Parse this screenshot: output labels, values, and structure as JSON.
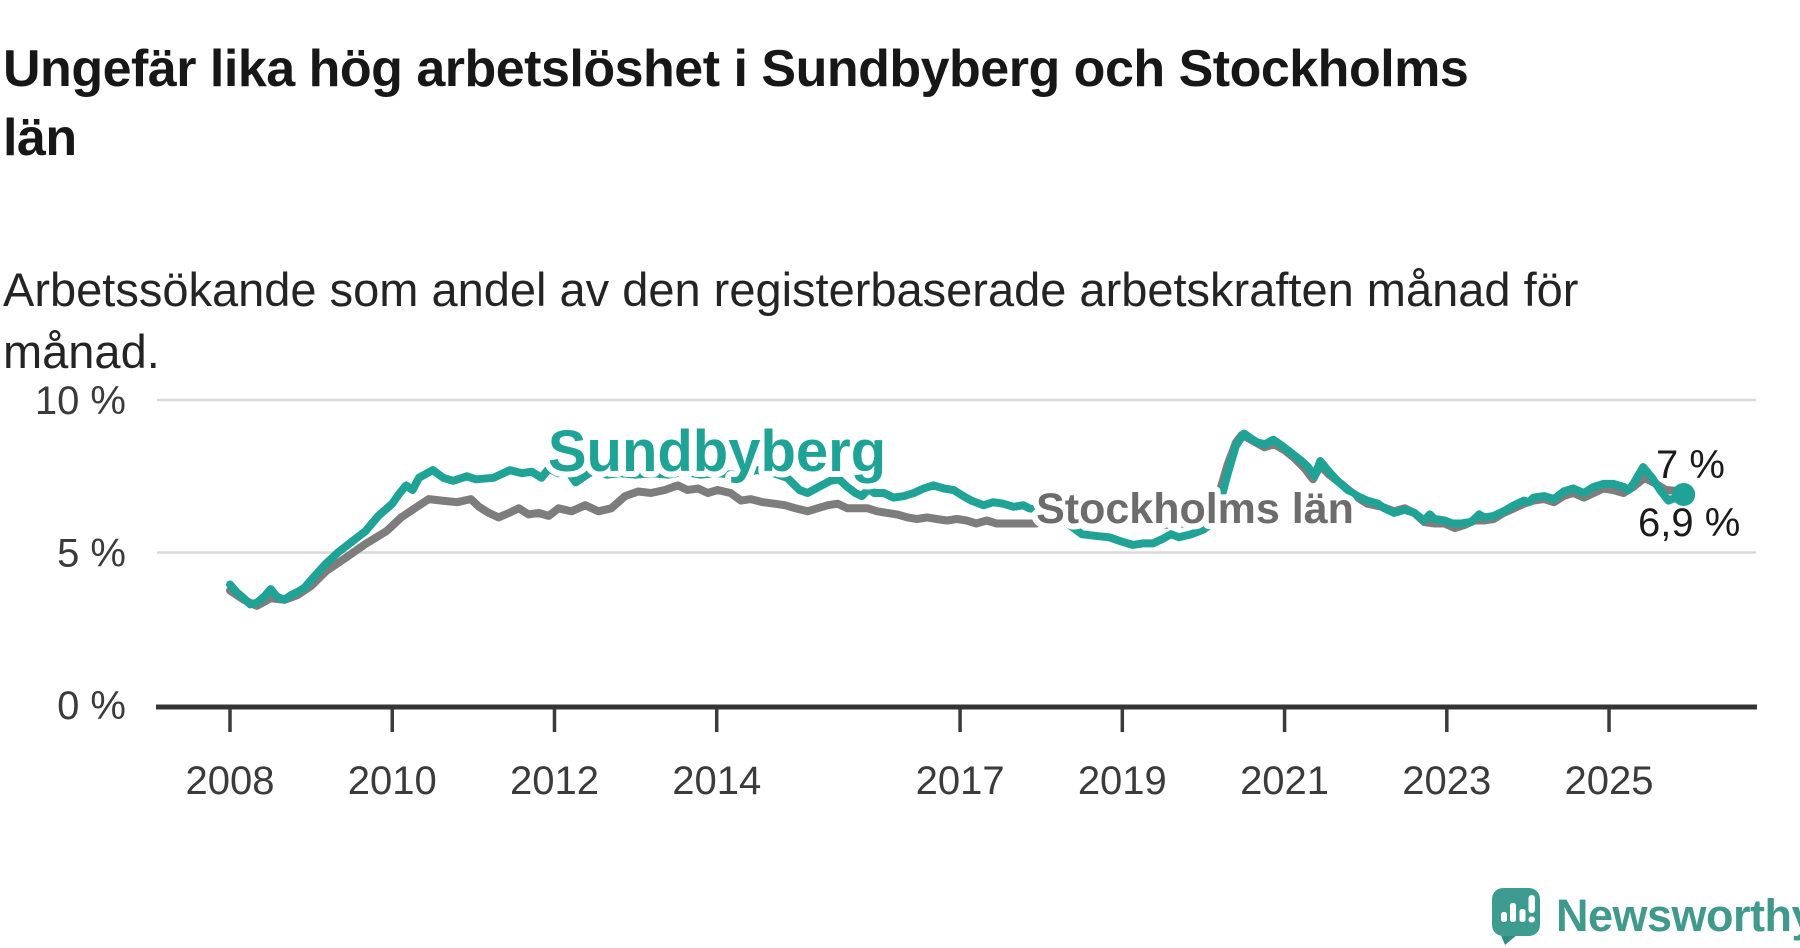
{
  "chart_data": {
    "type": "line",
    "title": "Ungefär lika hög arbetslöshet i Sundbyberg och Stockholms\nlän",
    "subtitle": "Arbetssökande som andel av den registerbaserade arbetskraften månad för\nmånad.",
    "unit": "%",
    "grid": true,
    "x_range": [
      2008.0,
      2025.92
    ],
    "y_axis": {
      "range": [
        0,
        10.5
      ],
      "ticks": [
        {
          "value": 0,
          "label": "0 %"
        },
        {
          "value": 5,
          "label": "5 %"
        },
        {
          "value": 10,
          "label": "10 %"
        }
      ]
    },
    "x_axis": {
      "ticks": [
        {
          "year": 2008,
          "label": "2008"
        },
        {
          "year": 2010,
          "label": "2010"
        },
        {
          "year": 2012,
          "label": "2012"
        },
        {
          "year": 2014,
          "label": "2014"
        },
        {
          "year": 2017,
          "label": "2017"
        },
        {
          "year": 2019,
          "label": "2019"
        },
        {
          "year": 2021,
          "label": "2021"
        },
        {
          "year": 2023,
          "label": "2023"
        },
        {
          "year": 2025,
          "label": "2025"
        }
      ]
    },
    "series": [
      {
        "name": "Sundbyberg",
        "color": "#1FA396",
        "label_color": "#1FA396",
        "end_label": "6,9 %",
        "latest_value": 6.9,
        "points": [
          [
            2008.0,
            3.95
          ],
          [
            2008.08,
            3.7
          ],
          [
            2008.17,
            3.5
          ],
          [
            2008.25,
            3.3
          ],
          [
            2008.33,
            3.35
          ],
          [
            2008.42,
            3.55
          ],
          [
            2008.5,
            3.8
          ],
          [
            2008.58,
            3.55
          ],
          [
            2008.67,
            3.45
          ],
          [
            2008.75,
            3.6
          ],
          [
            2008.83,
            3.7
          ],
          [
            2008.92,
            3.85
          ],
          [
            2009.0,
            4.1
          ],
          [
            2009.17,
            4.6
          ],
          [
            2009.33,
            5.0
          ],
          [
            2009.5,
            5.35
          ],
          [
            2009.67,
            5.7
          ],
          [
            2009.83,
            6.2
          ],
          [
            2010.0,
            6.6
          ],
          [
            2010.08,
            6.9
          ],
          [
            2010.17,
            7.2
          ],
          [
            2010.25,
            7.05
          ],
          [
            2010.33,
            7.45
          ],
          [
            2010.5,
            7.7
          ],
          [
            2010.63,
            7.45
          ],
          [
            2010.75,
            7.35
          ],
          [
            2010.92,
            7.5
          ],
          [
            2011.03,
            7.4
          ],
          [
            2011.25,
            7.45
          ],
          [
            2011.45,
            7.7
          ],
          [
            2011.6,
            7.6
          ],
          [
            2011.72,
            7.65
          ],
          [
            2011.84,
            7.45
          ],
          [
            2011.93,
            7.75
          ],
          [
            2012.05,
            7.6
          ],
          [
            2012.17,
            7.65
          ],
          [
            2012.26,
            7.3
          ],
          [
            2012.4,
            7.55
          ],
          [
            2012.5,
            7.7
          ],
          [
            2012.65,
            7.55
          ],
          [
            2012.8,
            7.6
          ],
          [
            2013.0,
            7.55
          ],
          [
            2013.2,
            7.6
          ],
          [
            2013.4,
            7.55
          ],
          [
            2013.6,
            7.65
          ],
          [
            2013.8,
            7.55
          ],
          [
            2014.0,
            7.6
          ],
          [
            2014.2,
            7.55
          ],
          [
            2014.5,
            7.7
          ],
          [
            2014.7,
            7.6
          ],
          [
            2014.87,
            7.45
          ],
          [
            2015.02,
            7.05
          ],
          [
            2015.12,
            6.95
          ],
          [
            2015.26,
            7.15
          ],
          [
            2015.4,
            7.35
          ],
          [
            2015.51,
            7.4
          ],
          [
            2015.61,
            7.15
          ],
          [
            2015.71,
            6.95
          ],
          [
            2015.79,
            6.85
          ],
          [
            2015.88,
            7.1
          ],
          [
            2015.94,
            6.95
          ],
          [
            2016.06,
            6.95
          ],
          [
            2016.18,
            6.8
          ],
          [
            2016.31,
            6.85
          ],
          [
            2016.43,
            6.95
          ],
          [
            2016.55,
            7.1
          ],
          [
            2016.67,
            7.2
          ],
          [
            2016.8,
            7.1
          ],
          [
            2016.92,
            7.05
          ],
          [
            2017.04,
            6.85
          ],
          [
            2017.14,
            6.7
          ],
          [
            2017.29,
            6.55
          ],
          [
            2017.41,
            6.65
          ],
          [
            2017.53,
            6.6
          ],
          [
            2017.66,
            6.5
          ],
          [
            2017.78,
            6.55
          ],
          [
            2017.85,
            6.45
          ],
          [
            2017.98,
            6.4
          ],
          [
            2018.1,
            6.3
          ],
          [
            2018.2,
            6.25
          ],
          [
            2018.35,
            5.9
          ],
          [
            2018.5,
            5.6
          ],
          [
            2018.65,
            5.55
          ],
          [
            2018.84,
            5.5
          ],
          [
            2019.0,
            5.35
          ],
          [
            2019.13,
            5.25
          ],
          [
            2019.25,
            5.3
          ],
          [
            2019.38,
            5.3
          ],
          [
            2019.5,
            5.45
          ],
          [
            2019.6,
            5.6
          ],
          [
            2019.7,
            5.5
          ],
          [
            2019.85,
            5.6
          ],
          [
            2020.0,
            5.75
          ],
          [
            2020.1,
            5.95
          ],
          [
            2020.2,
            6.6
          ],
          [
            2020.3,
            7.6
          ],
          [
            2020.4,
            8.5
          ],
          [
            2020.5,
            8.9
          ],
          [
            2020.58,
            8.75
          ],
          [
            2020.67,
            8.6
          ],
          [
            2020.76,
            8.55
          ],
          [
            2020.86,
            8.7
          ],
          [
            2020.97,
            8.5
          ],
          [
            2021.09,
            8.25
          ],
          [
            2021.21,
            8.0
          ],
          [
            2021.29,
            7.8
          ],
          [
            2021.37,
            7.5
          ],
          [
            2021.44,
            8.0
          ],
          [
            2021.53,
            7.7
          ],
          [
            2021.65,
            7.35
          ],
          [
            2021.78,
            7.05
          ],
          [
            2021.9,
            6.85
          ],
          [
            2022.02,
            6.7
          ],
          [
            2022.15,
            6.6
          ],
          [
            2022.23,
            6.45
          ],
          [
            2022.35,
            6.3
          ],
          [
            2022.48,
            6.4
          ],
          [
            2022.6,
            6.3
          ],
          [
            2022.72,
            6.05
          ],
          [
            2022.79,
            6.25
          ],
          [
            2022.85,
            6.1
          ],
          [
            2022.97,
            6.05
          ],
          [
            2023.07,
            5.95
          ],
          [
            2023.18,
            5.95
          ],
          [
            2023.3,
            6.0
          ],
          [
            2023.4,
            6.25
          ],
          [
            2023.46,
            6.15
          ],
          [
            2023.58,
            6.2
          ],
          [
            2023.7,
            6.35
          ],
          [
            2023.83,
            6.55
          ],
          [
            2023.95,
            6.7
          ],
          [
            2024.01,
            6.65
          ],
          [
            2024.07,
            6.8
          ],
          [
            2024.2,
            6.85
          ],
          [
            2024.32,
            6.75
          ],
          [
            2024.44,
            7.0
          ],
          [
            2024.56,
            7.1
          ],
          [
            2024.69,
            6.95
          ],
          [
            2024.81,
            7.15
          ],
          [
            2024.93,
            7.25
          ],
          [
            2025.05,
            7.25
          ],
          [
            2025.18,
            7.15
          ],
          [
            2025.24,
            7.05
          ],
          [
            2025.3,
            7.25
          ],
          [
            2025.42,
            7.8
          ],
          [
            2025.53,
            7.45
          ],
          [
            2025.63,
            7.05
          ],
          [
            2025.73,
            6.7
          ],
          [
            2025.92,
            6.9
          ]
        ]
      },
      {
        "name": "Stockholms län",
        "color": "#7D7D7D",
        "label_color": "#6C6C6C",
        "end_label": "7 %",
        "latest_value": 7.0,
        "points": [
          [
            2008.0,
            3.75
          ],
          [
            2008.17,
            3.45
          ],
          [
            2008.33,
            3.25
          ],
          [
            2008.5,
            3.5
          ],
          [
            2008.67,
            3.45
          ],
          [
            2008.83,
            3.6
          ],
          [
            2009.0,
            3.9
          ],
          [
            2009.19,
            4.4
          ],
          [
            2009.44,
            4.85
          ],
          [
            2009.68,
            5.3
          ],
          [
            2009.93,
            5.7
          ],
          [
            2010.11,
            6.15
          ],
          [
            2010.25,
            6.4
          ],
          [
            2010.45,
            6.75
          ],
          [
            2010.61,
            6.7
          ],
          [
            2010.8,
            6.65
          ],
          [
            2010.97,
            6.75
          ],
          [
            2011.07,
            6.5
          ],
          [
            2011.19,
            6.3
          ],
          [
            2011.31,
            6.15
          ],
          [
            2011.44,
            6.3
          ],
          [
            2011.56,
            6.45
          ],
          [
            2011.68,
            6.25
          ],
          [
            2011.8,
            6.3
          ],
          [
            2011.93,
            6.2
          ],
          [
            2012.05,
            6.45
          ],
          [
            2012.21,
            6.35
          ],
          [
            2012.38,
            6.55
          ],
          [
            2012.54,
            6.35
          ],
          [
            2012.7,
            6.45
          ],
          [
            2012.87,
            6.85
          ],
          [
            2013.03,
            7.0
          ],
          [
            2013.19,
            6.95
          ],
          [
            2013.36,
            7.05
          ],
          [
            2013.52,
            7.2
          ],
          [
            2013.64,
            7.05
          ],
          [
            2013.77,
            7.1
          ],
          [
            2013.89,
            6.95
          ],
          [
            2014.01,
            7.05
          ],
          [
            2014.17,
            6.95
          ],
          [
            2014.3,
            6.7
          ],
          [
            2014.42,
            6.75
          ],
          [
            2014.57,
            6.65
          ],
          [
            2014.71,
            6.6
          ],
          [
            2014.84,
            6.55
          ],
          [
            2014.97,
            6.45
          ],
          [
            2015.12,
            6.35
          ],
          [
            2015.24,
            6.45
          ],
          [
            2015.37,
            6.55
          ],
          [
            2015.49,
            6.6
          ],
          [
            2015.61,
            6.45
          ],
          [
            2015.73,
            6.45
          ],
          [
            2015.86,
            6.45
          ],
          [
            2015.98,
            6.35
          ],
          [
            2016.1,
            6.3
          ],
          [
            2016.22,
            6.25
          ],
          [
            2016.35,
            6.15
          ],
          [
            2016.47,
            6.1
          ],
          [
            2016.59,
            6.15
          ],
          [
            2016.71,
            6.1
          ],
          [
            2016.84,
            6.05
          ],
          [
            2016.96,
            6.1
          ],
          [
            2017.08,
            6.05
          ],
          [
            2017.2,
            5.95
          ],
          [
            2017.33,
            6.05
          ],
          [
            2017.45,
            5.95
          ],
          [
            2017.57,
            5.95
          ],
          [
            2017.7,
            5.95
          ],
          [
            2017.82,
            5.95
          ],
          [
            2017.94,
            5.95
          ],
          [
            2018.06,
            6.1
          ],
          [
            2018.18,
            6.15
          ],
          [
            2018.31,
            6.2
          ],
          [
            2018.39,
            6.25
          ],
          [
            2018.55,
            6.15
          ],
          [
            2018.75,
            6.1
          ],
          [
            2019.0,
            6.0
          ],
          [
            2019.25,
            5.95
          ],
          [
            2019.5,
            5.9
          ],
          [
            2019.75,
            5.95
          ],
          [
            2020.0,
            6.05
          ],
          [
            2020.1,
            6.25
          ],
          [
            2020.2,
            7.0
          ],
          [
            2020.3,
            7.9
          ],
          [
            2020.4,
            8.6
          ],
          [
            2020.47,
            8.85
          ],
          [
            2020.55,
            8.75
          ],
          [
            2020.65,
            8.6
          ],
          [
            2020.75,
            8.45
          ],
          [
            2020.87,
            8.55
          ],
          [
            2021.0,
            8.35
          ],
          [
            2021.12,
            8.1
          ],
          [
            2021.25,
            7.75
          ],
          [
            2021.35,
            7.4
          ],
          [
            2021.44,
            7.85
          ],
          [
            2021.55,
            7.55
          ],
          [
            2021.7,
            7.25
          ],
          [
            2021.9,
            6.8
          ],
          [
            2022.02,
            6.6
          ],
          [
            2022.2,
            6.5
          ],
          [
            2022.35,
            6.35
          ],
          [
            2022.48,
            6.45
          ],
          [
            2022.6,
            6.3
          ],
          [
            2022.72,
            6.0
          ],
          [
            2022.85,
            5.95
          ],
          [
            2022.97,
            5.95
          ],
          [
            2023.1,
            5.8
          ],
          [
            2023.22,
            5.9
          ],
          [
            2023.34,
            6.05
          ],
          [
            2023.46,
            6.05
          ],
          [
            2023.58,
            6.1
          ],
          [
            2023.7,
            6.3
          ],
          [
            2023.83,
            6.45
          ],
          [
            2023.95,
            6.6
          ],
          [
            2024.07,
            6.7
          ],
          [
            2024.2,
            6.75
          ],
          [
            2024.32,
            6.65
          ],
          [
            2024.44,
            6.85
          ],
          [
            2024.56,
            6.95
          ],
          [
            2024.69,
            6.8
          ],
          [
            2024.81,
            6.95
          ],
          [
            2024.93,
            7.1
          ],
          [
            2025.05,
            7.05
          ],
          [
            2025.18,
            6.95
          ],
          [
            2025.3,
            7.15
          ],
          [
            2025.44,
            7.45
          ],
          [
            2025.58,
            7.25
          ],
          [
            2025.7,
            7.05
          ],
          [
            2025.92,
            7.0
          ]
        ]
      }
    ],
    "colors": {
      "gridline": "#D9D9D9",
      "axis_line": "#343434",
      "axis_text": "#3B3B3B",
      "end_label_text": "#1b1b1b"
    }
  },
  "branding": {
    "logo_text": "Newsworthy",
    "logo_bubble_color": "#3D9C8F",
    "logo_tail_color": "#2F8C80",
    "logo_text_color": "#41998C"
  }
}
